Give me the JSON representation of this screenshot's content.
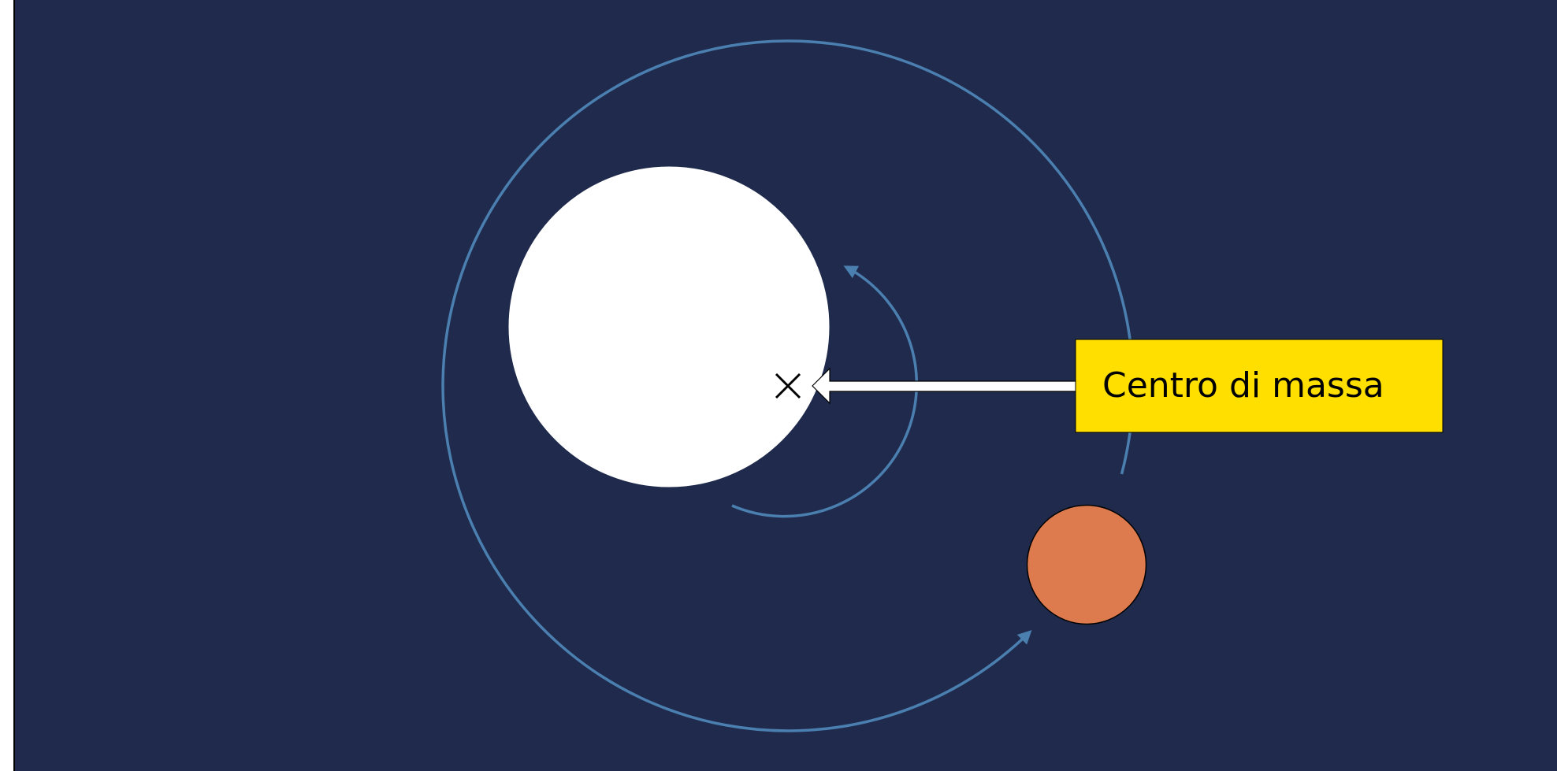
{
  "label": {
    "text": "Centro di massa"
  }
}
